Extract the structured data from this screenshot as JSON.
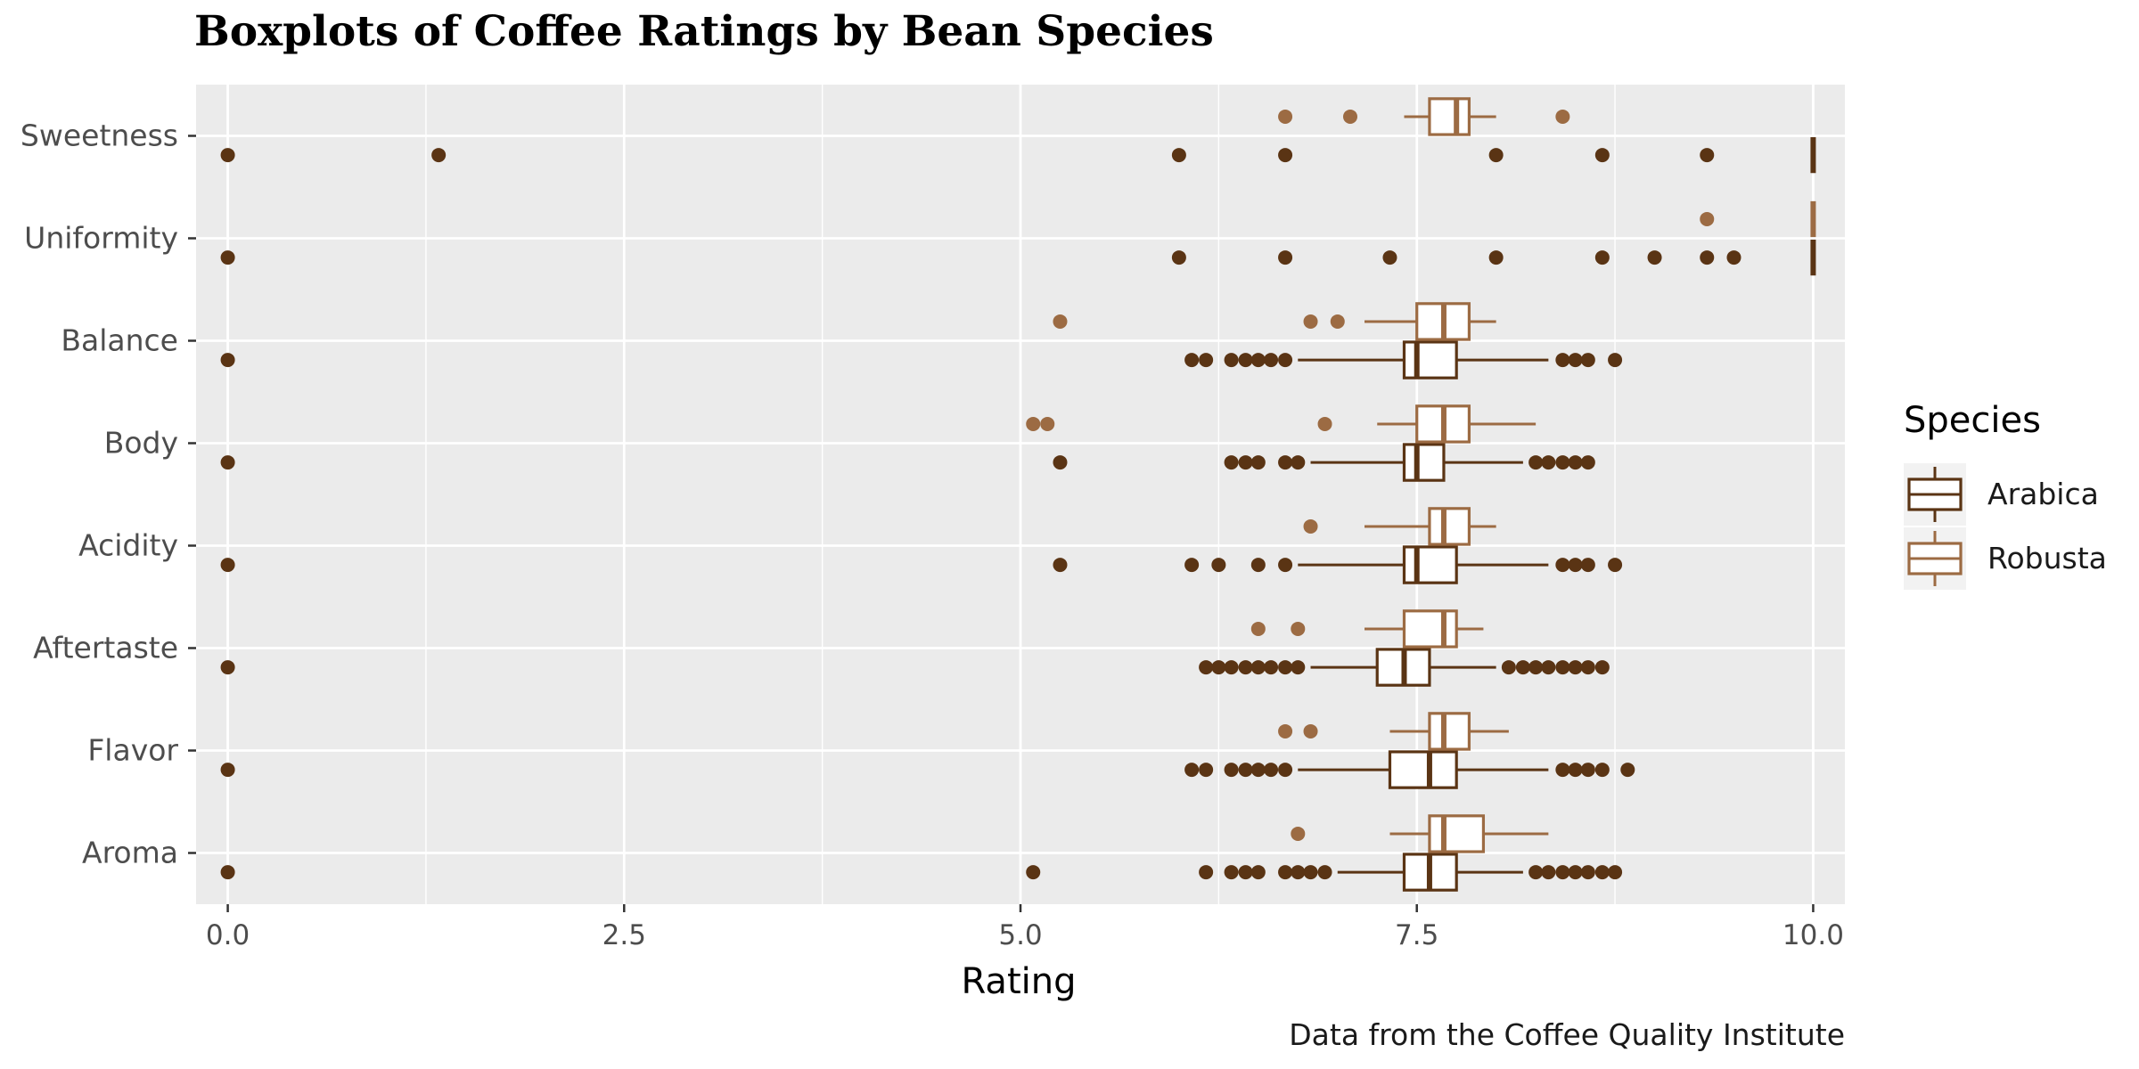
{
  "chart_data": {
    "type": "boxplot",
    "title": "Boxplots of Coffee Ratings by Bean Species",
    "xlabel": "Rating",
    "ylabel": "",
    "caption": "Data from the Coffee Quality Institute",
    "xlim": [
      -0.2,
      10.2
    ],
    "x_ticks": [
      "0.0",
      "2.5",
      "5.0",
      "7.5",
      "10.0"
    ],
    "x_tick_values": [
      0,
      2.5,
      5,
      7.5,
      10
    ],
    "grid": true,
    "legend": {
      "title": "Species",
      "placement": "right"
    },
    "categories": [
      "Sweetness",
      "Uniformity",
      "Balance",
      "Body",
      "Acidity",
      "Aftertaste",
      "Flavor",
      "Aroma"
    ],
    "series": [
      {
        "name": "Arabica",
        "color": "#5a3414",
        "boxes": [
          {
            "category": "Sweetness",
            "q1": 10,
            "median": 10,
            "q3": 10,
            "whisker_low": 10,
            "whisker_high": 10,
            "outliers": [
              0,
              1.33,
              6,
              6.67,
              8,
              8.67,
              9.33
            ]
          },
          {
            "category": "Uniformity",
            "q1": 10,
            "median": 10,
            "q3": 10,
            "whisker_low": 10,
            "whisker_high": 10,
            "outliers": [
              0,
              6,
              6.67,
              7.33,
              8,
              8.67,
              9,
              9.33,
              9.5
            ]
          },
          {
            "category": "Balance",
            "q1": 7.42,
            "median": 7.5,
            "q3": 7.75,
            "whisker_low": 6.75,
            "whisker_high": 8.33,
            "outliers": [
              0,
              6.08,
              6.17,
              6.33,
              6.42,
              6.5,
              6.58,
              6.67,
              8.42,
              8.5,
              8.58,
              8.75
            ]
          },
          {
            "category": "Body",
            "q1": 7.42,
            "median": 7.5,
            "q3": 7.67,
            "whisker_low": 6.83,
            "whisker_high": 8.17,
            "outliers": [
              0,
              5.25,
              6.33,
              6.42,
              6.5,
              6.67,
              6.75,
              8.25,
              8.33,
              8.42,
              8.5,
              8.58
            ]
          },
          {
            "category": "Acidity",
            "q1": 7.42,
            "median": 7.5,
            "q3": 7.75,
            "whisker_low": 6.75,
            "whisker_high": 8.33,
            "outliers": [
              0,
              5.25,
              6.08,
              6.25,
              6.5,
              6.67,
              8.42,
              8.5,
              8.58,
              8.75
            ]
          },
          {
            "category": "Aftertaste",
            "q1": 7.25,
            "median": 7.42,
            "q3": 7.58,
            "whisker_low": 6.83,
            "whisker_high": 8,
            "outliers": [
              0,
              6.17,
              6.25,
              6.33,
              6.42,
              6.5,
              6.58,
              6.67,
              6.75,
              8.08,
              8.17,
              8.25,
              8.33,
              8.42,
              8.5,
              8.58,
              8.67
            ]
          },
          {
            "category": "Flavor",
            "q1": 7.33,
            "median": 7.58,
            "q3": 7.75,
            "whisker_low": 6.75,
            "whisker_high": 8.33,
            "outliers": [
              0,
              6.08,
              6.17,
              6.33,
              6.42,
              6.5,
              6.58,
              6.67,
              8.42,
              8.5,
              8.58,
              8.67,
              8.83
            ]
          },
          {
            "category": "Aroma",
            "q1": 7.42,
            "median": 7.58,
            "q3": 7.75,
            "whisker_low": 7,
            "whisker_high": 8.17,
            "outliers": [
              0,
              5.08,
              6.17,
              6.33,
              6.42,
              6.5,
              6.67,
              6.75,
              6.83,
              6.92,
              8.25,
              8.33,
              8.42,
              8.5,
              8.58,
              8.67,
              8.75
            ]
          }
        ]
      },
      {
        "name": "Robusta",
        "color": "#9c6b43",
        "boxes": [
          {
            "category": "Sweetness",
            "q1": 7.58,
            "median": 7.75,
            "q3": 7.83,
            "whisker_low": 7.42,
            "whisker_high": 8,
            "outliers": [
              6.67,
              7.08,
              8.42
            ]
          },
          {
            "category": "Uniformity",
            "q1": 10,
            "median": 10,
            "q3": 10,
            "whisker_low": 10,
            "whisker_high": 10,
            "outliers": [
              9.33
            ]
          },
          {
            "category": "Balance",
            "q1": 7.5,
            "median": 7.67,
            "q3": 7.83,
            "whisker_low": 7.17,
            "whisker_high": 8,
            "outliers": [
              5.25,
              6.83,
              7
            ]
          },
          {
            "category": "Body",
            "q1": 7.5,
            "median": 7.67,
            "q3": 7.83,
            "whisker_low": 7.25,
            "whisker_high": 8.25,
            "outliers": [
              5.08,
              5.17,
              6.92
            ]
          },
          {
            "category": "Acidity",
            "q1": 7.58,
            "median": 7.67,
            "q3": 7.83,
            "whisker_low": 7.17,
            "whisker_high": 8,
            "outliers": [
              6.83
            ]
          },
          {
            "category": "Aftertaste",
            "q1": 7.42,
            "median": 7.67,
            "q3": 7.75,
            "whisker_low": 7.17,
            "whisker_high": 7.92,
            "outliers": [
              6.5,
              6.75
            ]
          },
          {
            "category": "Flavor",
            "q1": 7.58,
            "median": 7.67,
            "q3": 7.83,
            "whisker_low": 7.33,
            "whisker_high": 8.08,
            "outliers": [
              6.67,
              6.83
            ]
          },
          {
            "category": "Aroma",
            "q1": 7.58,
            "median": 7.67,
            "q3": 7.92,
            "whisker_low": 7.33,
            "whisker_high": 8.33,
            "outliers": [
              6.75
            ]
          }
        ]
      }
    ]
  }
}
